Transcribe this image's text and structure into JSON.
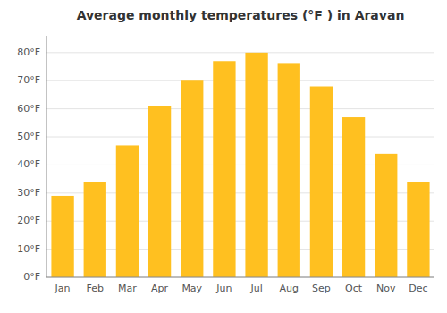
{
  "chart_data": {
    "type": "bar",
    "title": "Average monthly temperatures (°F ) in Aravan",
    "categories": [
      "Jan",
      "Feb",
      "Mar",
      "Apr",
      "May",
      "Jun",
      "Jul",
      "Aug",
      "Sep",
      "Oct",
      "Nov",
      "Dec"
    ],
    "values": [
      29,
      34,
      47,
      61,
      70,
      77,
      80,
      76,
      68,
      57,
      44,
      34
    ],
    "color": "#FFC020",
    "ylim": [
      0,
      86
    ],
    "yticks": [
      {
        "value": 0,
        "label": "0°F"
      },
      {
        "value": 10,
        "label": "10°F"
      },
      {
        "value": 20,
        "label": "20°F"
      },
      {
        "value": 30,
        "label": "30°F"
      },
      {
        "value": 40,
        "label": "40°F"
      },
      {
        "value": 50,
        "label": "50°F"
      },
      {
        "value": 60,
        "label": "60°F"
      },
      {
        "value": 70,
        "label": "70°F"
      },
      {
        "value": 80,
        "label": "80°F"
      }
    ],
    "grid": true
  }
}
